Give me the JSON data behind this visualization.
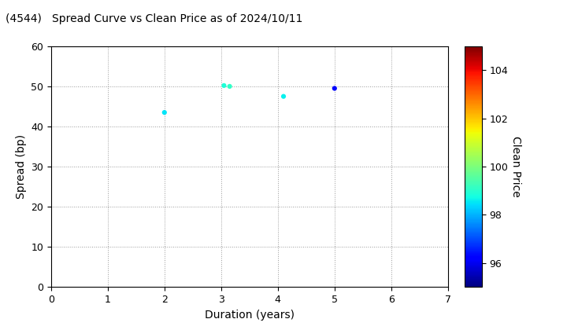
{
  "title": "(4544)   Spread Curve vs Clean Price as of 2024/10/11",
  "xlabel": "Duration (years)",
  "ylabel": "Spread (bp)",
  "colorbar_label": "Clean Price",
  "xlim": [
    0,
    7
  ],
  "ylim": [
    0,
    60
  ],
  "xticks": [
    0,
    1,
    2,
    3,
    4,
    5,
    6,
    7
  ],
  "yticks": [
    0,
    10,
    20,
    30,
    40,
    50,
    60
  ],
  "colorbar_ticks": [
    96,
    98,
    100,
    102,
    104
  ],
  "colorbar_vmin": 95,
  "colorbar_vmax": 105,
  "points": [
    {
      "duration": 2.0,
      "spread": 43.5,
      "price": 98.5
    },
    {
      "duration": 3.05,
      "spread": 50.2,
      "price": 98.9
    },
    {
      "duration": 3.15,
      "spread": 50.0,
      "price": 99.1
    },
    {
      "duration": 4.1,
      "spread": 47.5,
      "price": 98.6
    },
    {
      "duration": 5.0,
      "spread": 49.5,
      "price": 96.3
    }
  ],
  "marker_size": 20,
  "background_color": "#ffffff",
  "grid_color": "#999999",
  "title_fontsize": 10,
  "axis_fontsize": 10
}
